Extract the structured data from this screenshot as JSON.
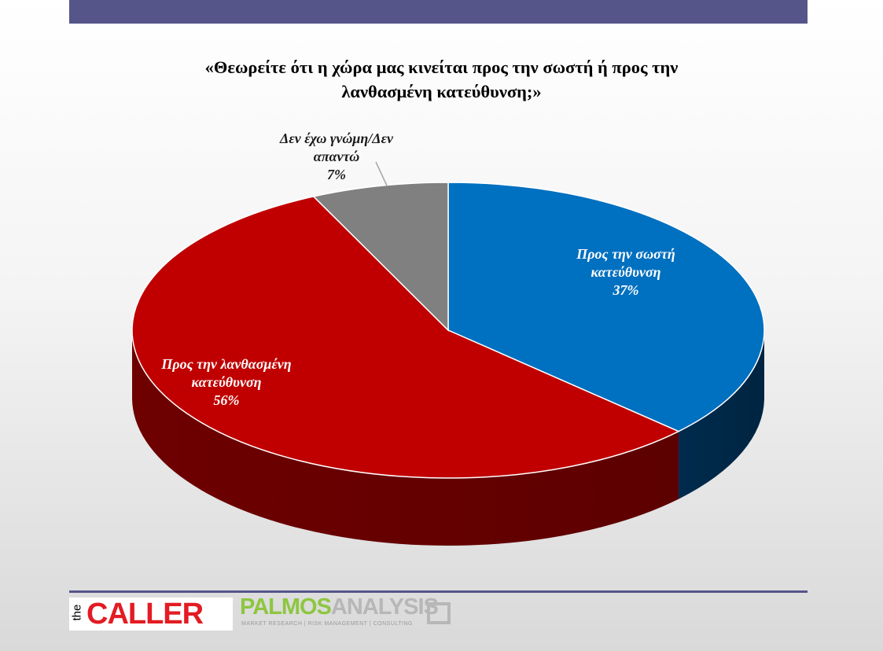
{
  "header": {
    "title_line1": "«Θεωρείτε ότι η χώρα μας κινείται προς την σωστή ή προς την",
    "title_line2": "λανθασμένη κατεύθυνση;»"
  },
  "chart_data": {
    "type": "pie",
    "style": "3d",
    "title": "«Θεωρείτε ότι η χώρα μας κινείται προς την σωστή ή προς την λανθασμένη κατεύθυνση;»",
    "slices": [
      {
        "name": "Προς την σωστή κατεύθυνση",
        "value": 37,
        "label_lines": [
          "Προς την σωστή",
          "κατεύθυνση",
          "37%"
        ],
        "color": "#0070c0",
        "side_color": "#002b4d"
      },
      {
        "name": "Προς την λανθασμένη κατεύθυνση",
        "value": 56,
        "label_lines": [
          "Προς την λανθασμένη",
          "κατεύθυνση",
          "56%"
        ],
        "color": "#c00000",
        "side_color": "#6e0000"
      },
      {
        "name": "Δεν έχω γνώμη/Δεν απαντώ",
        "value": 7,
        "label_lines": [
          "Δεν έχω γνώμη/Δεν",
          "απαντώ",
          "7%"
        ],
        "color": "#808080",
        "side_color": "#4d4d4d"
      }
    ],
    "label_color": "#ffffff",
    "outside_label_color": "#1a1a1a"
  },
  "footer": {
    "logo_the": "the",
    "logo_caller": "CALLER",
    "logo_palmos": "PALMOS",
    "logo_analysis": "ANALYSIS",
    "logo_tagline": "MARKET RESEARCH | RISK MANAGEMENT | CONSULTING"
  }
}
